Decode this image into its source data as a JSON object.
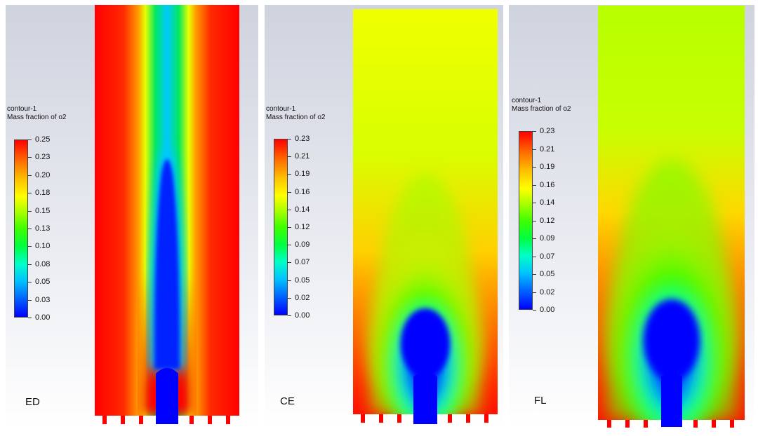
{
  "panels": [
    {
      "case_label": "ED",
      "legend": {
        "title": "contour-1",
        "subtitle": "Mass fraction of o2",
        "ticks": [
          "0.25",
          "0.23",
          "0.20",
          "0.18",
          "0.15",
          "0.13",
          "0.10",
          "0.08",
          "0.05",
          "0.03",
          "0.00"
        ]
      }
    },
    {
      "case_label": "CE",
      "legend": {
        "title": "contour-1",
        "subtitle": "Mass fraction of o2",
        "ticks": [
          "0.23",
          "0.21",
          "0.19",
          "0.16",
          "0.14",
          "0.12",
          "0.09",
          "0.07",
          "0.05",
          "0.02",
          "0.00"
        ]
      }
    },
    {
      "case_label": "FL",
      "legend": {
        "title": "contour-1",
        "subtitle": "Mass fraction of o2",
        "ticks": [
          "0.23",
          "0.21",
          "0.19",
          "0.16",
          "0.14",
          "0.12",
          "0.09",
          "0.07",
          "0.05",
          "0.02",
          "0.00"
        ]
      }
    }
  ],
  "colors": {
    "max": "#ff0000",
    "high": "#ffff00",
    "mid": "#00ff00",
    "low_mid": "#00ffff",
    "min": "#0000ff"
  }
}
